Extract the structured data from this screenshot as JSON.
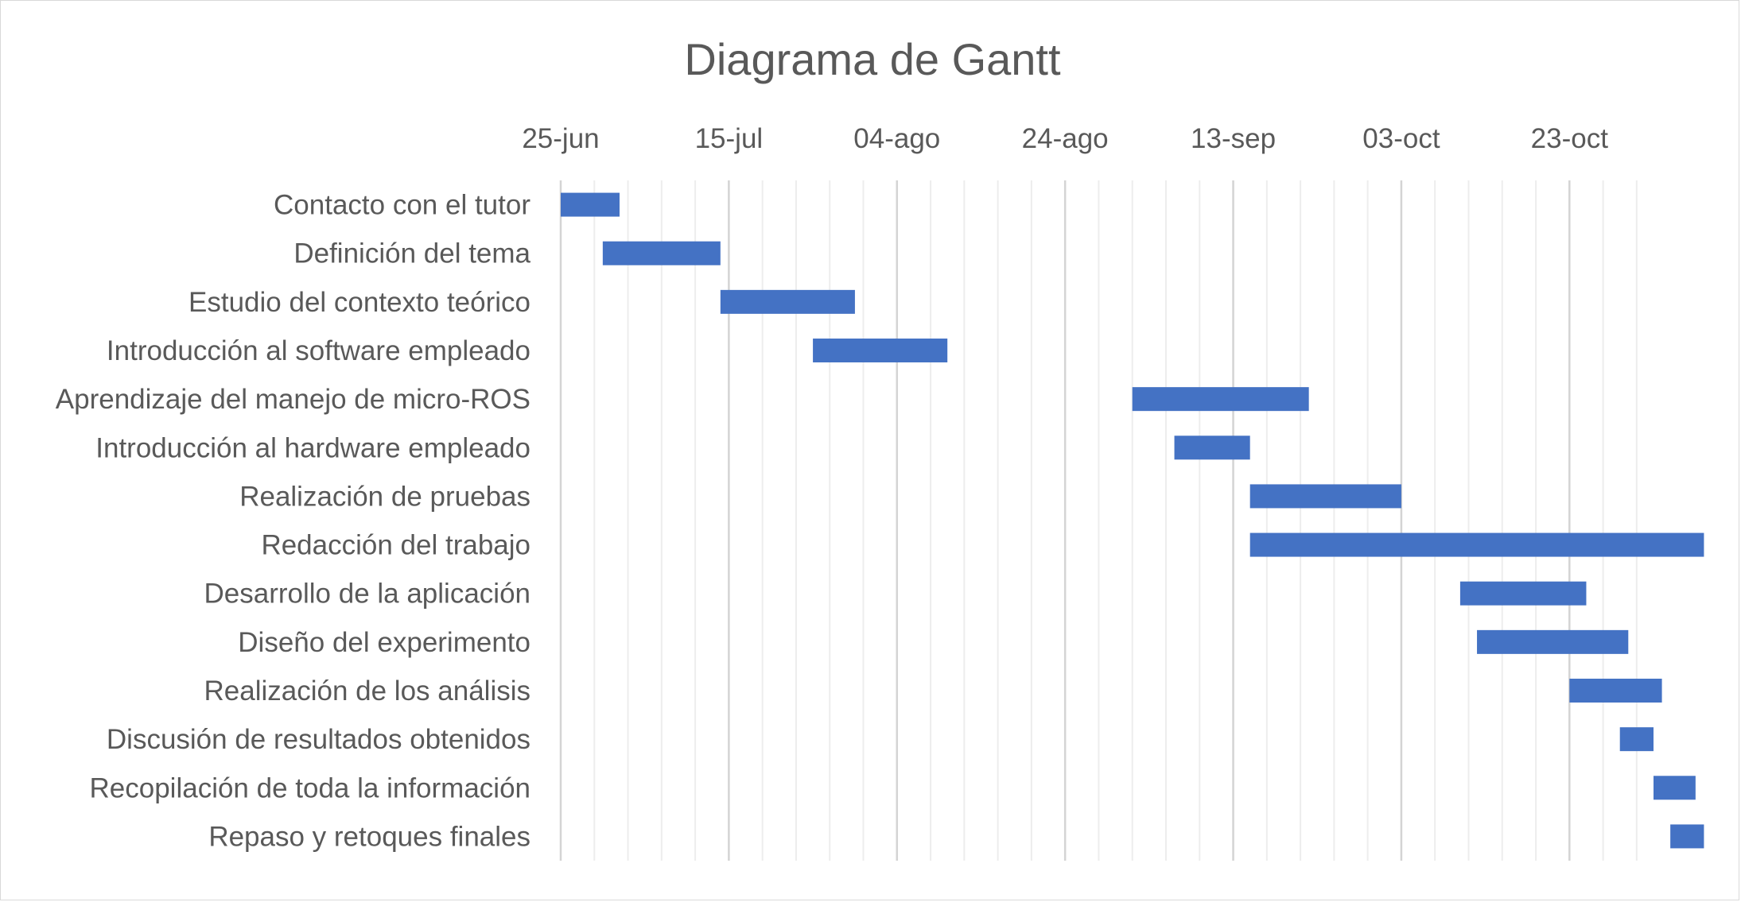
{
  "chart_data": {
    "type": "bar",
    "subtype": "gantt",
    "title": "Diagrama de Gantt",
    "xlabel": "",
    "ylabel": "",
    "x_axis_position": "top",
    "xlim": [
      "2024-06-25",
      "2024-11-02"
    ],
    "x_ticks": [
      {
        "date": "2024-06-25",
        "label": "25-jun"
      },
      {
        "date": "2024-07-15",
        "label": "15-jul"
      },
      {
        "date": "2024-08-04",
        "label": "04-ago"
      },
      {
        "date": "2024-08-24",
        "label": "24-ago"
      },
      {
        "date": "2024-09-13",
        "label": "13-sep"
      },
      {
        "date": "2024-10-03",
        "label": "03-oct"
      },
      {
        "date": "2024-10-23",
        "label": "23-oct"
      }
    ],
    "minor_gridline_interval_days": 4,
    "grid": true,
    "legend": "none",
    "bar_color": "#4472c4",
    "tasks": [
      {
        "name": "Contacto con el tutor",
        "start": "2024-06-25",
        "end": "2024-07-02"
      },
      {
        "name": "Definición del tema",
        "start": "2024-06-30",
        "end": "2024-07-14"
      },
      {
        "name": "Estudio del contexto teórico",
        "start": "2024-07-14",
        "end": "2024-07-30"
      },
      {
        "name": "Introducción al software empleado",
        "start": "2024-07-25",
        "end": "2024-08-10"
      },
      {
        "name": "Aprendizaje del manejo de micro-ROS",
        "start": "2024-09-01",
        "end": "2024-09-22"
      },
      {
        "name": "Introducción al hardware empleado",
        "start": "2024-09-06",
        "end": "2024-09-15"
      },
      {
        "name": "Realización de pruebas ",
        "start": "2024-09-15",
        "end": "2024-10-03"
      },
      {
        "name": "Redacción del trabajo",
        "start": "2024-09-15",
        "end": "2024-11-08"
      },
      {
        "name": "Desarrollo de la aplicación",
        "start": "2024-10-10",
        "end": "2024-10-25"
      },
      {
        "name": "Diseño del experimento",
        "start": "2024-10-12",
        "end": "2024-10-30"
      },
      {
        "name": "Realización de los análisis",
        "start": "2024-10-23",
        "end": "2024-11-03"
      },
      {
        "name": "Discusión de resultados obtenidos",
        "start": "2024-10-29",
        "end": "2024-11-02"
      },
      {
        "name": "Recopilación de toda la información",
        "start": "2024-11-02",
        "end": "2024-11-07"
      },
      {
        "name": "Repaso y retoques finales",
        "start": "2024-11-04",
        "end": "2024-11-08"
      }
    ]
  }
}
